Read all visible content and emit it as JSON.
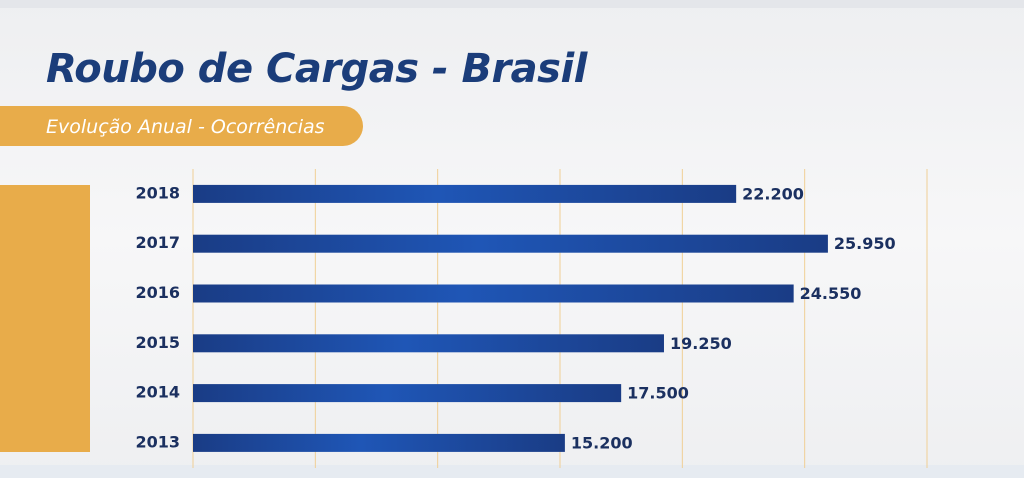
{
  "chart_data": {
    "type": "bar",
    "orientation": "horizontal",
    "title": "Roubo de Cargas - Brasil",
    "subtitle": "Evolução Anual - Ocorrências",
    "categories": [
      "2018",
      "2017",
      "2016",
      "2015",
      "2014",
      "2013"
    ],
    "values": [
      22200,
      25950,
      24550,
      19250,
      17500,
      15200
    ],
    "value_labels": [
      "22.200",
      "25.950",
      "24.550",
      "19.250",
      "17.500",
      "15.200"
    ],
    "color": "#1c4a9e",
    "xlim": [
      0,
      30000
    ],
    "xticks": [
      0,
      5000,
      10000,
      15000,
      20000,
      25000,
      30000
    ],
    "grid": true
  }
}
